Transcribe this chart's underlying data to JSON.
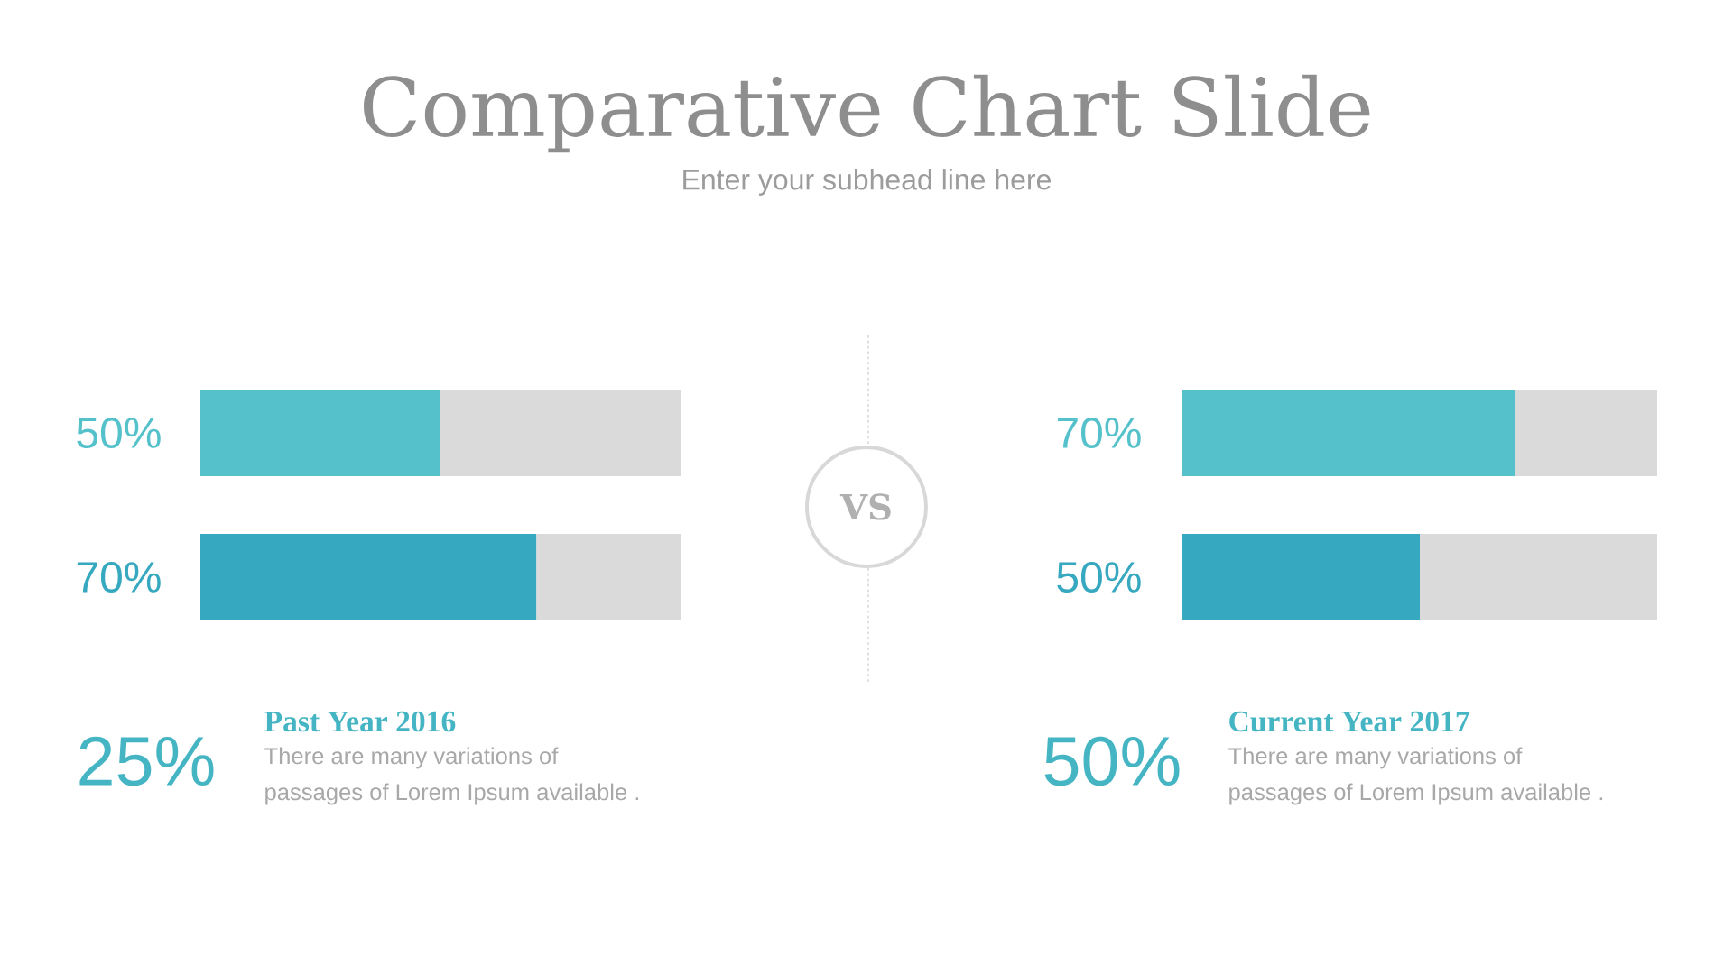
{
  "chart_data": [
    {
      "type": "bar",
      "title": "Comparative Chart Slide",
      "subtitle": "Enter your subhead line here",
      "orientation": "horizontal",
      "stacked": true,
      "tick_labels": false,
      "categories": [
        null,
        null
      ],
      "series": [
        {
          "colors": [
            "#55c1cb",
            "#36a8bf"
          ],
          "values": [
            50,
            70
          ],
          "value_labels": [
            "50%",
            "70%"
          ]
        },
        {
          "color": "#dadada",
          "values": [
            50,
            30
          ]
        }
      ],
      "annotations": [
        "25%",
        "Past Year 2016",
        "There are many variations of passages of Lorem Ipsum available .",
        "VS"
      ]
    },
    {
      "type": "bar",
      "orientation": "horizontal",
      "stacked": true,
      "tick_labels": false,
      "categories": [
        null,
        null
      ],
      "series": [
        {
          "colors": [
            "#55c1cb",
            "#36a8bf"
          ],
          "values": [
            70,
            50
          ],
          "value_labels": [
            "70%",
            "50%"
          ]
        },
        {
          "color": "#dadada",
          "values": [
            30,
            50
          ]
        }
      ],
      "annotations": [
        "50%",
        "Current Year 2017",
        "There are many variations of passages of Lorem Ipsum available ."
      ]
    }
  ]
}
